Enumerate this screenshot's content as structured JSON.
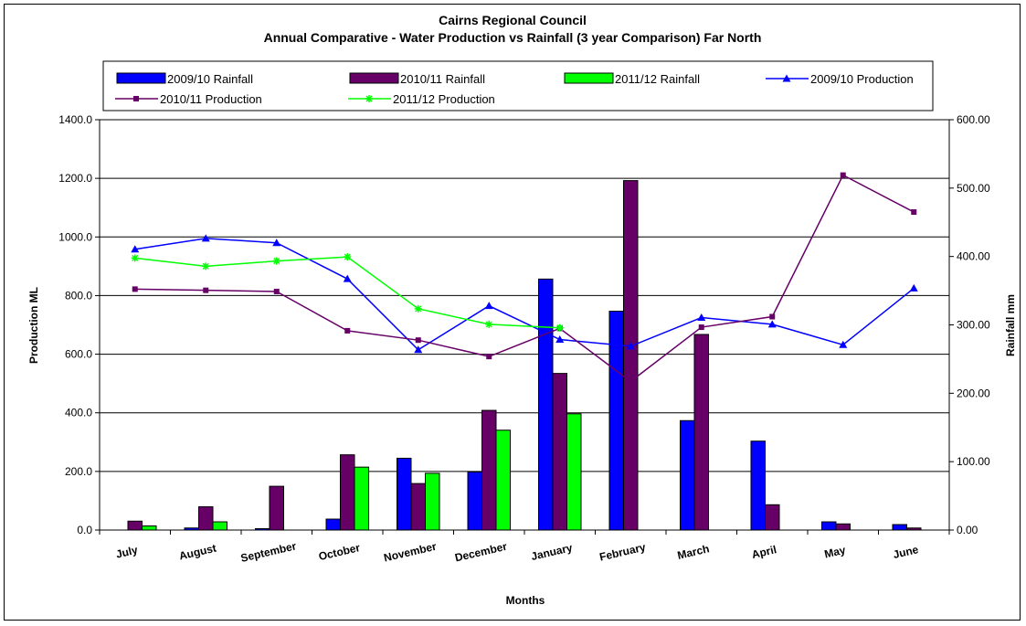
{
  "chart_data": {
    "type": "bar",
    "title": "Cairns Regional Council",
    "subtitle": "Annual Comparative - Water Production vs Rainfall (3 year Comparison) Far North",
    "xlabel": "Months",
    "ylabel": "Production ML",
    "y2label": "Rainfall mm",
    "categories": [
      "July",
      "August",
      "September",
      "October",
      "November",
      "December",
      "January",
      "February",
      "March",
      "April",
      "May",
      "June"
    ],
    "ylim": [
      0,
      1400
    ],
    "y2lim": [
      0,
      600
    ],
    "y_ticks": [
      "0.0",
      "200.0",
      "400.0",
      "600.0",
      "800.0",
      "1000.0",
      "1200.0",
      "1400.0"
    ],
    "y2_ticks": [
      "0.00",
      "100.00",
      "200.00",
      "300.00",
      "400.00",
      "500.00",
      "600.00"
    ],
    "grid": true,
    "legend_position": "top",
    "bar_series": [
      {
        "name": "2009/10 Rainfall",
        "axis": "right",
        "color": "#0000ff",
        "values": [
          0,
          3,
          2,
          16,
          105,
          85,
          367,
          320,
          160,
          130,
          12,
          8
        ]
      },
      {
        "name": "2010/11 Rainfall",
        "axis": "right",
        "color": "#660066",
        "values": [
          13,
          34,
          64,
          110,
          68,
          175,
          229,
          511,
          286,
          37,
          9,
          3
        ]
      },
      {
        "name": "2011/12 Rainfall",
        "axis": "right",
        "color": "#00ff00",
        "values": [
          6,
          12,
          null,
          92,
          83,
          146,
          170,
          null,
          null,
          null,
          null,
          null
        ]
      }
    ],
    "line_series": [
      {
        "name": "2009/10 Production",
        "axis": "left",
        "color": "#0000ff",
        "marker": "triangle",
        "values": [
          958,
          995,
          980,
          857,
          615,
          765,
          650,
          627,
          725,
          702,
          632,
          825
        ]
      },
      {
        "name": "2010/11 Production",
        "axis": "left",
        "color": "#660066",
        "marker": "square",
        "values": [
          822,
          818,
          814,
          680,
          648,
          592,
          688,
          507,
          692,
          728,
          1211,
          1085
        ]
      },
      {
        "name": "2011/12 Production",
        "axis": "left",
        "color": "#00ff00",
        "marker": "star",
        "values": [
          928,
          900,
          918,
          932,
          755,
          702,
          690,
          null,
          null,
          null,
          null,
          null
        ]
      }
    ]
  }
}
